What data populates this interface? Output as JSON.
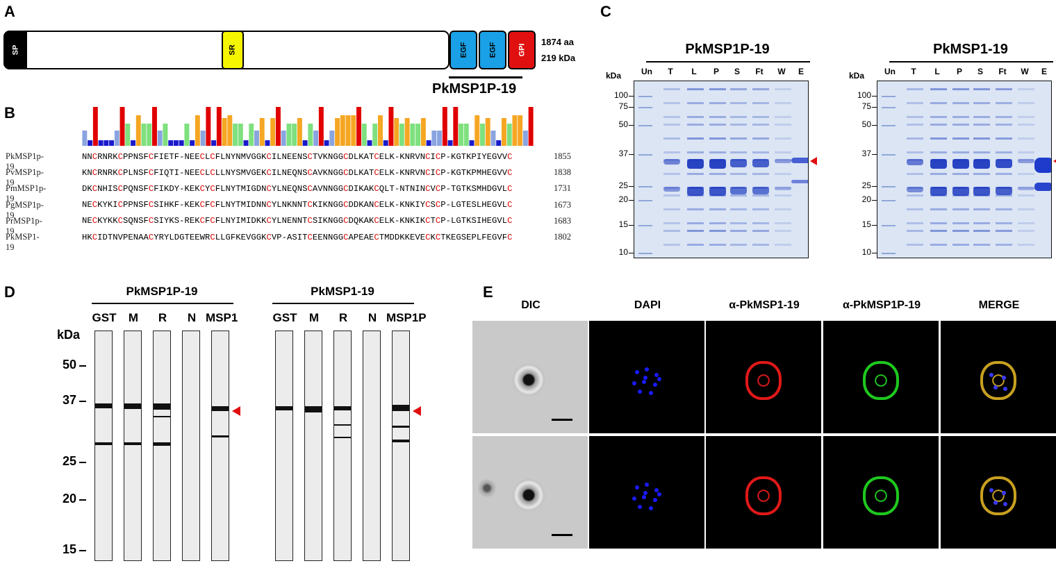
{
  "panels": {
    "A": "A",
    "B": "B",
    "C": "C",
    "D": "D",
    "E": "E"
  },
  "panelA": {
    "domains": {
      "sp": "SP",
      "sr": "SR",
      "egf1": "EGF",
      "egf2": "EGF",
      "gpi": "GPI"
    },
    "length": "1874 aa",
    "mass": "219 kDa",
    "fragment": "PkMSP1P-19",
    "colors": {
      "sp": "#000000",
      "sr": "#f5f500",
      "egf": "#1aa0e6",
      "gpi": "#e01010"
    }
  },
  "panelB": {
    "rows": [
      {
        "name": "PkMSP1p-19",
        "seq": "NNCRNRKCPPNSFCFIETF-NEECLCFLNYNMVGGKCILNEENSCTVKNGGCDLKATCELK-KNRVNCICP-KGTKPIYEGVVC",
        "num": "1855"
      },
      {
        "name": "PvMSP1p-19",
        "seq": "KNCRNRKCPLNSFCFIQTI-NEECLCLLNYSMVGEKCILNEQNSCAVKNGGCDLKATCELK-KNRVNCICP-KGTKPMHEGVVC",
        "num": "1838"
      },
      {
        "name": "PmMSP1p-19",
        "seq": "DKCNHISCPQNSFCFIKDY-KEKCYCFLNYTMIGDNCYLNEQNSCAVNNGGCDIKAKCQLT-NTNINCVCP-TGTKSMHDGVLC",
        "num": "1731"
      },
      {
        "name": "PgMSP1p-19",
        "seq": "NECKYKICPPNSFCSIHKF-KEKCFCFLNYTMIDNNCYLNKNNTCKIKNGGCDDKANCELK-KNKIYCSCP-LGTESLHEGVLC",
        "num": "1673"
      },
      {
        "name": "PrMSP1p-19",
        "seq": "NECKYKKCSQNSFCSIYKS-REKCFCFLNYIMIDKKCYLNENNTCSIKNGGCDQKAKCELK-KNKIKCTCP-LGTKSIHEGVLC",
        "num": "1683"
      },
      {
        "name": "PkMSP1-19",
        "seq": "HKCIDTNVPENAACYRYLDGTEEWRCLLGFKEVGGKCVP-ASITCEENNGGCAPEAECTMDDKKEVECKCTKEGSEPLFEGVFC",
        "num": "1802"
      }
    ],
    "conservation_colors": {
      "cys": "#e00000",
      "high": "#f5a623",
      "mid": "#7ee07e",
      "low": "#8aa4e0",
      "min": "#1a1acc"
    }
  },
  "panelC": {
    "gels": [
      {
        "title": "PkMSP1P-19",
        "kda": "kDa",
        "lanes": [
          "Un",
          "T",
          "L",
          "P",
          "S",
          "Ft",
          "W",
          "E"
        ],
        "markers": [
          "100",
          "75",
          "50",
          "37",
          "25",
          "20",
          "15",
          "10"
        ]
      },
      {
        "title": "PkMSP1-19",
        "kda": "kDa",
        "lanes": [
          "Un",
          "T",
          "L",
          "P",
          "S",
          "Ft",
          "W",
          "E"
        ],
        "markers": [
          "100",
          "75",
          "50",
          "37",
          "25",
          "20",
          "15",
          "10"
        ]
      }
    ]
  },
  "panelD": {
    "kda": "kDa",
    "markers": [
      "50",
      "37",
      "25",
      "20",
      "15"
    ],
    "blots": [
      {
        "title": "PkMSP1P-19",
        "lanes": [
          "GST",
          "M",
          "R",
          "N",
          "MSP1"
        ]
      },
      {
        "title": "PkMSP1-19",
        "lanes": [
          "GST",
          "M",
          "R",
          "N",
          "MSP1P"
        ]
      }
    ]
  },
  "panelE": {
    "columns": [
      "DIC",
      "DAPI",
      "α-PkMSP1-19",
      "α-PkMSP1P-19",
      "MERGE"
    ]
  }
}
